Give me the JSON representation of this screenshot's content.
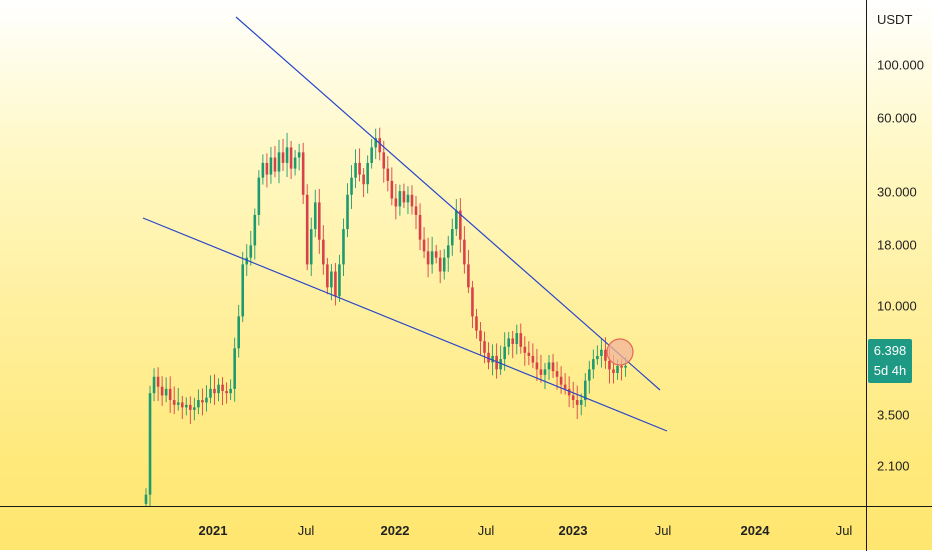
{
  "price_scale": {
    "currency": "USDT",
    "ticks": [
      "100.000",
      "60.000",
      "30.000",
      "18.000",
      "10.000",
      "3.500",
      "2.100"
    ]
  },
  "time_scale": {
    "labels": [
      "2021",
      "Jul",
      "2022",
      "Jul",
      "2023",
      "Jul",
      "2024",
      "Jul"
    ]
  },
  "last_price": {
    "value": "6.398",
    "countdown": "5d 4h"
  },
  "colors": {
    "up": "#1e9a6e",
    "down": "#d9414a",
    "trendline": "#2746c9",
    "badge": "#1e9a84",
    "highlight_fill": "#f3b39a",
    "highlight_stroke": "#e06a55"
  },
  "chart_data": {
    "type": "candlestick",
    "scale": "log",
    "interval": "weekly",
    "ylim": [
      1.8,
      160
    ],
    "y_ticks": [
      100,
      60,
      30,
      18,
      10,
      3.5,
      2.1
    ],
    "series": [
      {
        "name": "",
        "close": [
          2.0,
          5.0,
          5.8,
          5.3,
          4.9,
          5.2,
          4.7,
          4.5,
          4.6,
          4.4,
          4.5,
          4.3,
          4.4,
          4.7,
          4.6,
          4.8,
          5.2,
          5.0,
          5.4,
          5.1,
          5.0,
          5.2,
          7.5,
          10.0,
          16.0,
          17.0,
          19.0,
          25.0,
          35.0,
          40.0,
          36.0,
          42.0,
          37.0,
          44.0,
          40.0,
          46.0,
          38.0,
          42.0,
          44.0,
          30.0,
          16.0,
          22.0,
          28.0,
          20.0,
          16.0,
          13.0,
          15.0,
          12.0,
          16.0,
          22.0,
          30.0,
          35.0,
          40.0,
          36.0,
          33.0,
          40.0,
          46.0,
          50.0,
          44.0,
          38.0,
          34.0,
          29.0,
          27.0,
          31.0,
          28.0,
          30.0,
          27.0,
          25.0,
          20.0,
          18.0,
          16.0,
          18.0,
          17.0,
          15.0,
          17.0,
          19.0,
          22.0,
          26.0,
          20.0,
          16.0,
          13.0,
          10.0,
          8.8,
          8.0,
          7.2,
          6.6,
          7.0,
          6.2,
          6.8,
          7.6,
          8.2,
          7.8,
          8.6,
          7.6,
          7.2,
          7.0,
          6.6,
          6.2,
          5.9,
          6.2,
          6.6,
          6.1,
          5.8,
          5.4,
          5.2,
          4.9,
          4.7,
          4.5,
          4.7,
          5.6,
          6.2,
          6.8,
          7.0,
          7.4,
          6.7,
          6.2,
          6.0,
          6.4,
          6.3,
          6.4
        ]
      }
    ]
  }
}
